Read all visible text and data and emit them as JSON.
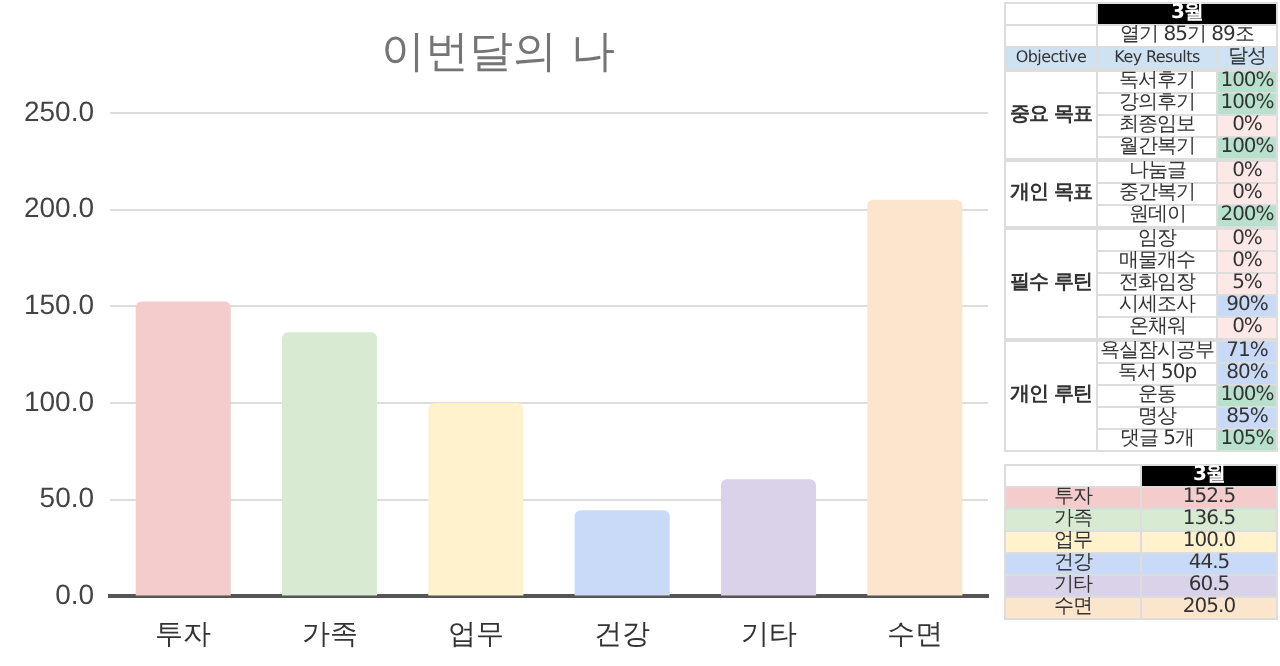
{
  "chart_data": [
    {
      "type": "bar",
      "title": "이번달의 나",
      "categories": [
        "투자",
        "가족",
        "업무",
        "건강",
        "기타",
        "수면"
      ],
      "values": [
        152.5,
        136.5,
        100.0,
        44.5,
        60.5,
        205.0
      ],
      "colors": [
        "#f4cccc",
        "#d9ead3",
        "#fff2cc",
        "#c9daf8",
        "#d9d2e9",
        "#fce5cd"
      ],
      "ylim": [
        0,
        250
      ],
      "yticks": [
        {
          "value": 0,
          "label": "0.0"
        },
        {
          "value": 50,
          "label": "50.0"
        },
        {
          "value": 100,
          "label": "100.0"
        },
        {
          "value": 150,
          "label": "150.0"
        },
        {
          "value": 200,
          "label": "200.0"
        },
        {
          "value": 250,
          "label": "250.0"
        }
      ],
      "grid": "y",
      "legend": false
    },
    {
      "type": "other",
      "annotations": [
        "3월",
        "열기 85기 89조",
        "Objective",
        "Key Results",
        "달성"
      ]
    },
    {
      "type": "other",
      "annotations": [
        "중요 목표"
      ],
      "categories": [
        "독서후기",
        "강의후기",
        "최종임보",
        "월간복기"
      ],
      "values": [
        100,
        100,
        0,
        100
      ],
      "value_labels": [
        "100%",
        "100%",
        "0%",
        "100%"
      ],
      "colors": [
        "#b7e1cd",
        "#b7e1cd",
        "#fce8e6",
        "#b7e1cd"
      ]
    },
    {
      "type": "other",
      "annotations": [
        "개인 목표"
      ],
      "categories": [
        "나눔글",
        "중간복기",
        "원데이"
      ],
      "values": [
        0,
        0,
        200
      ],
      "value_labels": [
        "0%",
        "0%",
        "200%"
      ],
      "colors": [
        "#fce8e6",
        "#fce8e6",
        "#b7e1cd"
      ]
    },
    {
      "type": "other",
      "annotations": [
        "필수 루틴"
      ],
      "categories": [
        "임장",
        "매물개수",
        "전화임장",
        "시세조사",
        "온채워"
      ],
      "values": [
        0,
        0,
        5,
        90,
        0
      ],
      "value_labels": [
        "0%",
        "0%",
        "5%",
        "90%",
        "0%"
      ],
      "colors": [
        "#fce8e6",
        "#fce8e6",
        "#fce8e6",
        "#c9daf8",
        "#fce8e6"
      ]
    },
    {
      "type": "other",
      "annotations": [
        "개인 루틴"
      ],
      "categories": [
        "욕실잠시공부",
        "독서 50p",
        "운동",
        "명상",
        "댓글 5개"
      ],
      "values": [
        71,
        80,
        100,
        85,
        105
      ],
      "value_labels": [
        "71%",
        "80%",
        "100%",
        "85%",
        "105%"
      ],
      "colors": [
        "#c9daf8",
        "#c9daf8",
        "#b7e1cd",
        "#c9daf8",
        "#b7e1cd"
      ]
    },
    {
      "type": "other",
      "annotations": [
        "3월"
      ],
      "categories": [
        "투자",
        "가족",
        "업무",
        "건강",
        "기타",
        "수면"
      ],
      "values": [
        152.5,
        136.5,
        100.0,
        44.5,
        60.5,
        205.0
      ],
      "value_labels": [
        "152.5",
        "136.5",
        "100.0",
        "44.5",
        "60.5",
        "205.0"
      ],
      "colors": [
        "#f4cccc",
        "#d9ead3",
        "#fff2cc",
        "#c9daf8",
        "#d9d2e9",
        "#fce5cd"
      ]
    }
  ]
}
